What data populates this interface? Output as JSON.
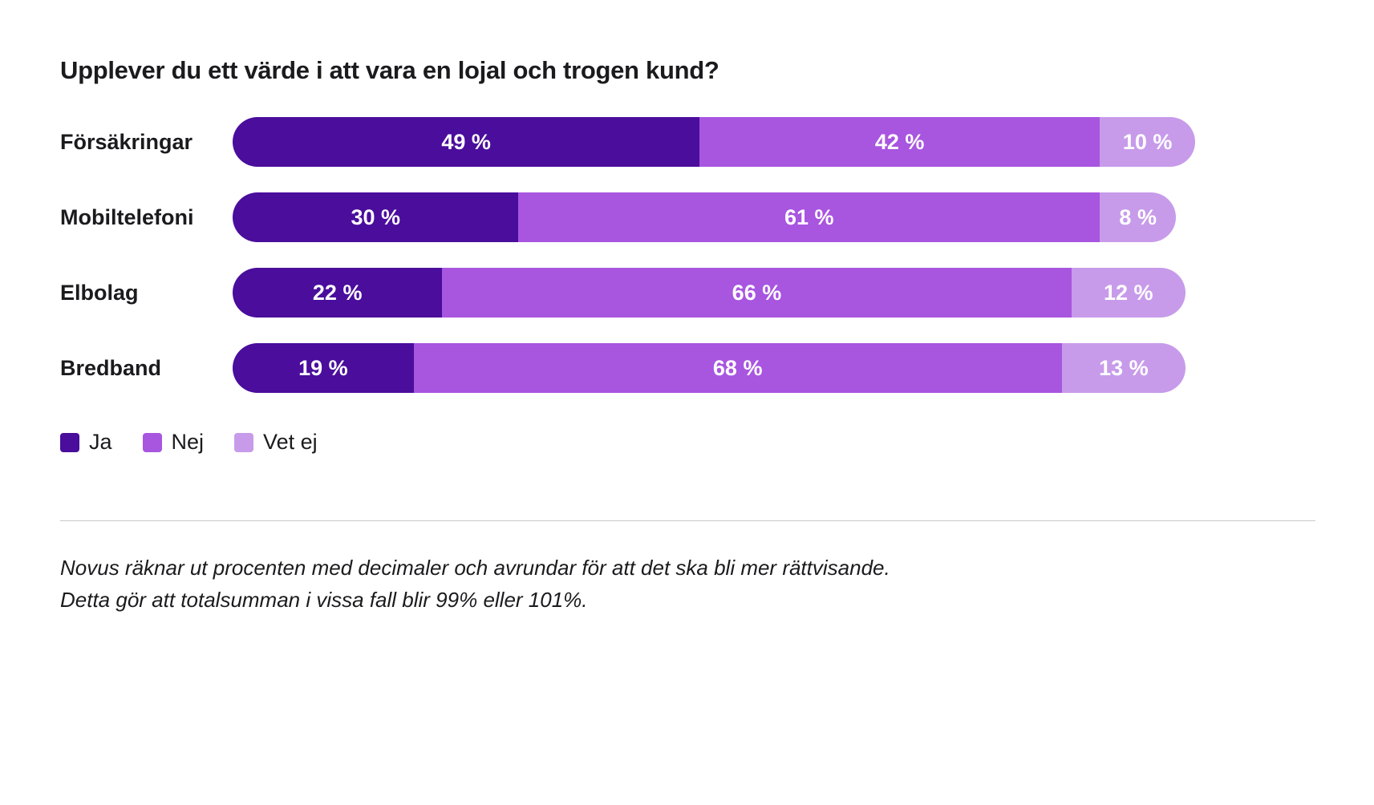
{
  "title": "Upplever du ett värde i att vara en lojal och trogen kund?",
  "colors": {
    "ja": "#4a0d9c",
    "nej": "#a855e0",
    "vet_ej": "#c79bea",
    "text": "#1b1b1e",
    "divider": "#c9c9c9",
    "background": "#ffffff"
  },
  "chart_data": {
    "type": "bar",
    "orientation": "horizontal",
    "stacked": true,
    "title": "Upplever du ett värde i att vara en lojal och trogen kund?",
    "categories": [
      "Försäkringar",
      "Mobiltelefoni",
      "Elbolag",
      "Bredband"
    ],
    "series": [
      {
        "name": "Ja",
        "color": "#4a0d9c",
        "values": [
          49,
          30,
          22,
          19
        ]
      },
      {
        "name": "Nej",
        "color": "#a855e0",
        "values": [
          42,
          61,
          66,
          68
        ]
      },
      {
        "name": "Vet ej",
        "color": "#c79bea",
        "values": [
          10,
          8,
          12,
          13
        ]
      }
    ],
    "row_totals": [
      101,
      99,
      100,
      100
    ],
    "value_suffix": " %",
    "xlim": [
      0,
      101
    ],
    "grid": false,
    "legend_position": "bottom",
    "value_labels": "inside-center-white-bold"
  },
  "footnote": {
    "line1": "Novus räknar ut procenten med decimaler och avrundar för att det ska bli mer rättvisande.",
    "line2": "Detta gör att totalsumman i vissa fall blir 99% eller 101%."
  }
}
